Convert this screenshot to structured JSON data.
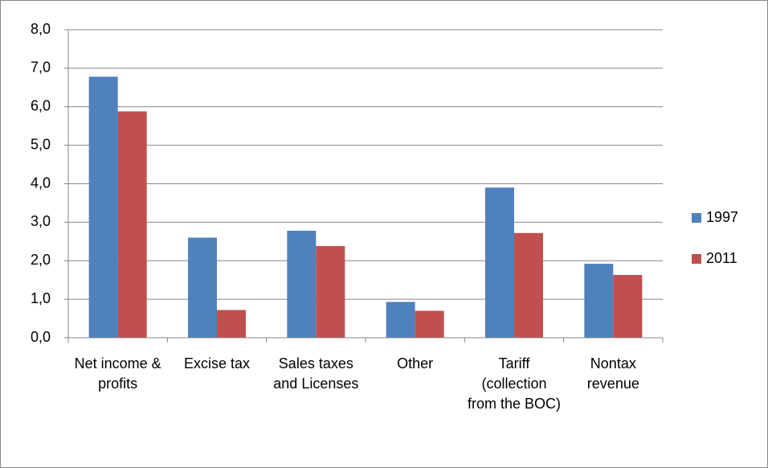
{
  "chart_data": {
    "type": "bar",
    "categories": [
      "Net income & profits",
      "Excise tax",
      "Sales taxes and Licenses",
      "Other",
      "Tariff (collection from the BOC)",
      "Nontax revenue"
    ],
    "series": [
      {
        "name": "1997",
        "color": "#4f81bd",
        "values": [
          6.78,
          2.6,
          2.78,
          0.93,
          3.9,
          1.92
        ]
      },
      {
        "name": "2011",
        "color": "#c0504d",
        "values": [
          5.88,
          0.72,
          2.38,
          0.7,
          2.72,
          1.63
        ]
      }
    ],
    "ylim": [
      0,
      8
    ],
    "yticks": [
      {
        "value": 0,
        "label": "0,0"
      },
      {
        "value": 1,
        "label": "1,0"
      },
      {
        "value": 2,
        "label": "2,0"
      },
      {
        "value": 3,
        "label": "3,0"
      },
      {
        "value": 4,
        "label": "4,0"
      },
      {
        "value": 5,
        "label": "5,0"
      },
      {
        "value": 6,
        "label": "6,0"
      },
      {
        "value": 7,
        "label": "7,0"
      },
      {
        "value": 8,
        "label": "8,0"
      }
    ],
    "grid": true,
    "legend": "right"
  }
}
